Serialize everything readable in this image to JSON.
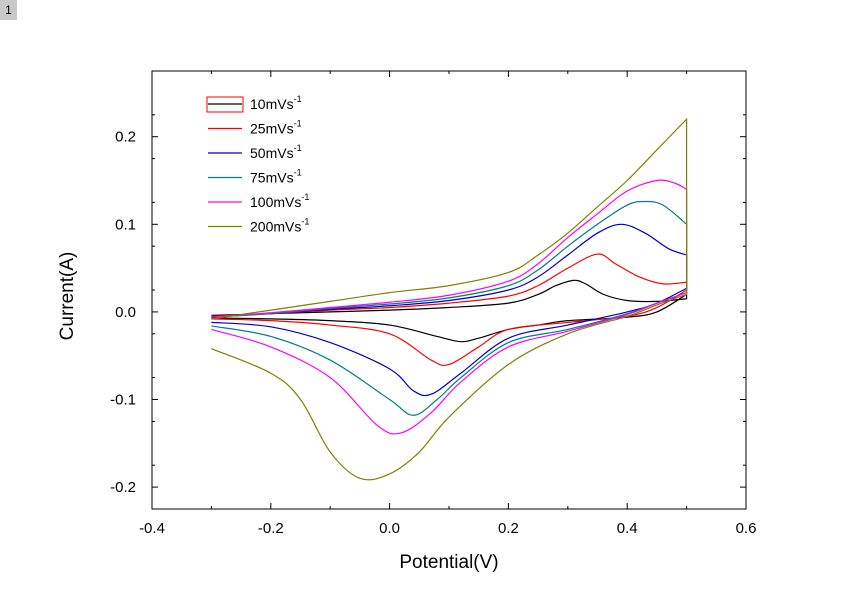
{
  "figure": {
    "badge": "1"
  },
  "chart_data": {
    "type": "line",
    "title": "",
    "xlabel": "Potential(V)",
    "ylabel": "Current(A)",
    "xlim": [
      -0.4,
      0.6
    ],
    "ylim": [
      -0.225,
      0.275
    ],
    "xticks": [
      -0.4,
      -0.2,
      0.0,
      0.2,
      0.4,
      0.6
    ],
    "xtick_labels": [
      "-0.4",
      "-0.2",
      "0.0",
      "0.2",
      "0.4",
      "0.6"
    ],
    "yticks": [
      -0.2,
      -0.1,
      0.0,
      0.1,
      0.2
    ],
    "ytick_labels": [
      "-0.2",
      "-0.1",
      "0.0",
      "0.1",
      "0.2"
    ],
    "grid": false,
    "legend": {
      "position": "top-left",
      "box_first_entry": true
    },
    "series": [
      {
        "name": "10mVs",
        "name_superscript": "-1",
        "color": "#000000",
        "forward": [
          [
            -0.3,
            -0.004
          ],
          [
            -0.2,
            -0.002
          ],
          [
            -0.1,
            0.0
          ],
          [
            0.0,
            0.002
          ],
          [
            0.1,
            0.005
          ],
          [
            0.2,
            0.01
          ],
          [
            0.25,
            0.02
          ],
          [
            0.28,
            0.03
          ],
          [
            0.31,
            0.036
          ],
          [
            0.33,
            0.032
          ],
          [
            0.36,
            0.02
          ],
          [
            0.4,
            0.013
          ],
          [
            0.45,
            0.012
          ],
          [
            0.5,
            0.015
          ]
        ],
        "reverse": [
          [
            0.5,
            0.02
          ],
          [
            0.45,
            0.0
          ],
          [
            0.4,
            -0.006
          ],
          [
            0.3,
            -0.01
          ],
          [
            0.25,
            -0.015
          ],
          [
            0.2,
            -0.02
          ],
          [
            0.15,
            -0.03
          ],
          [
            0.12,
            -0.034
          ],
          [
            0.08,
            -0.028
          ],
          [
            0.0,
            -0.015
          ],
          [
            -0.1,
            -0.01
          ],
          [
            -0.2,
            -0.008
          ],
          [
            -0.3,
            -0.007
          ]
        ]
      },
      {
        "name": "25mVs",
        "name_superscript": "-1",
        "color": "#ff0000",
        "forward": [
          [
            -0.3,
            -0.005
          ],
          [
            -0.2,
            -0.002
          ],
          [
            -0.1,
            0.002
          ],
          [
            0.0,
            0.005
          ],
          [
            0.1,
            0.01
          ],
          [
            0.2,
            0.018
          ],
          [
            0.25,
            0.03
          ],
          [
            0.3,
            0.05
          ],
          [
            0.35,
            0.066
          ],
          [
            0.38,
            0.055
          ],
          [
            0.42,
            0.04
          ],
          [
            0.46,
            0.032
          ],
          [
            0.5,
            0.034
          ]
        ],
        "reverse": [
          [
            0.5,
            0.025
          ],
          [
            0.45,
            0.005
          ],
          [
            0.4,
            -0.005
          ],
          [
            0.3,
            -0.012
          ],
          [
            0.2,
            -0.02
          ],
          [
            0.15,
            -0.04
          ],
          [
            0.1,
            -0.06
          ],
          [
            0.07,
            -0.055
          ],
          [
            0.0,
            -0.025
          ],
          [
            -0.1,
            -0.015
          ],
          [
            -0.2,
            -0.01
          ],
          [
            -0.3,
            -0.008
          ]
        ]
      },
      {
        "name": "50mVs",
        "name_superscript": "-1",
        "color": "#0000cc",
        "forward": [
          [
            -0.3,
            -0.006
          ],
          [
            -0.2,
            -0.002
          ],
          [
            -0.1,
            0.003
          ],
          [
            0.0,
            0.007
          ],
          [
            0.1,
            0.013
          ],
          [
            0.2,
            0.025
          ],
          [
            0.25,
            0.04
          ],
          [
            0.3,
            0.065
          ],
          [
            0.35,
            0.09
          ],
          [
            0.39,
            0.1
          ],
          [
            0.43,
            0.09
          ],
          [
            0.47,
            0.072
          ],
          [
            0.5,
            0.065
          ]
        ],
        "reverse": [
          [
            0.5,
            0.027
          ],
          [
            0.45,
            0.01
          ],
          [
            0.4,
            0.0
          ],
          [
            0.3,
            -0.015
          ],
          [
            0.2,
            -0.03
          ],
          [
            0.12,
            -0.07
          ],
          [
            0.07,
            -0.094
          ],
          [
            0.04,
            -0.09
          ],
          [
            0.0,
            -0.065
          ],
          [
            -0.1,
            -0.035
          ],
          [
            -0.2,
            -0.017
          ],
          [
            -0.3,
            -0.012
          ]
        ]
      },
      {
        "name": "75mVs",
        "name_superscript": "-1",
        "color": "#008080",
        "forward": [
          [
            -0.3,
            -0.006
          ],
          [
            -0.2,
            -0.002
          ],
          [
            -0.1,
            0.004
          ],
          [
            0.0,
            0.009
          ],
          [
            0.1,
            0.016
          ],
          [
            0.2,
            0.03
          ],
          [
            0.25,
            0.048
          ],
          [
            0.3,
            0.075
          ],
          [
            0.35,
            0.1
          ],
          [
            0.4,
            0.122
          ],
          [
            0.43,
            0.126
          ],
          [
            0.46,
            0.122
          ],
          [
            0.5,
            0.1
          ]
        ],
        "reverse": [
          [
            0.5,
            0.022
          ],
          [
            0.45,
            0.01
          ],
          [
            0.4,
            -0.002
          ],
          [
            0.3,
            -0.02
          ],
          [
            0.2,
            -0.035
          ],
          [
            0.12,
            -0.075
          ],
          [
            0.08,
            -0.1
          ],
          [
            0.04,
            -0.118
          ],
          [
            0.0,
            -0.1
          ],
          [
            -0.1,
            -0.055
          ],
          [
            -0.2,
            -0.028
          ],
          [
            -0.3,
            -0.016
          ]
        ]
      },
      {
        "name": "100mVs",
        "name_superscript": "-1",
        "color": "#ff00ff",
        "forward": [
          [
            -0.3,
            -0.006
          ],
          [
            -0.2,
            -0.001
          ],
          [
            -0.1,
            0.005
          ],
          [
            0.0,
            0.011
          ],
          [
            0.1,
            0.019
          ],
          [
            0.2,
            0.035
          ],
          [
            0.25,
            0.055
          ],
          [
            0.3,
            0.085
          ],
          [
            0.35,
            0.112
          ],
          [
            0.4,
            0.138
          ],
          [
            0.45,
            0.15
          ],
          [
            0.48,
            0.147
          ],
          [
            0.5,
            0.14
          ]
        ],
        "reverse": [
          [
            0.5,
            0.022
          ],
          [
            0.45,
            0.01
          ],
          [
            0.4,
            -0.003
          ],
          [
            0.3,
            -0.022
          ],
          [
            0.2,
            -0.04
          ],
          [
            0.12,
            -0.08
          ],
          [
            0.07,
            -0.115
          ],
          [
            0.02,
            -0.138
          ],
          [
            -0.02,
            -0.13
          ],
          [
            -0.1,
            -0.075
          ],
          [
            -0.2,
            -0.04
          ],
          [
            -0.3,
            -0.02
          ]
        ]
      },
      {
        "name": "200mVs",
        "name_superscript": "-1",
        "color": "#808000",
        "forward": [
          [
            -0.3,
            -0.008
          ],
          [
            -0.2,
            0.002
          ],
          [
            -0.1,
            0.012
          ],
          [
            0.0,
            0.022
          ],
          [
            0.1,
            0.03
          ],
          [
            0.2,
            0.045
          ],
          [
            0.25,
            0.065
          ],
          [
            0.3,
            0.09
          ],
          [
            0.35,
            0.12
          ],
          [
            0.4,
            0.15
          ],
          [
            0.45,
            0.185
          ],
          [
            0.5,
            0.22
          ]
        ],
        "reverse": [
          [
            0.5,
            0.02
          ],
          [
            0.45,
            0.008
          ],
          [
            0.4,
            -0.005
          ],
          [
            0.3,
            -0.025
          ],
          [
            0.2,
            -0.06
          ],
          [
            0.1,
            -0.12
          ],
          [
            0.05,
            -0.16
          ],
          [
            0.0,
            -0.185
          ],
          [
            -0.05,
            -0.19
          ],
          [
            -0.1,
            -0.16
          ],
          [
            -0.15,
            -0.1
          ],
          [
            -0.2,
            -0.07
          ],
          [
            -0.3,
            -0.042
          ]
        ]
      }
    ]
  }
}
